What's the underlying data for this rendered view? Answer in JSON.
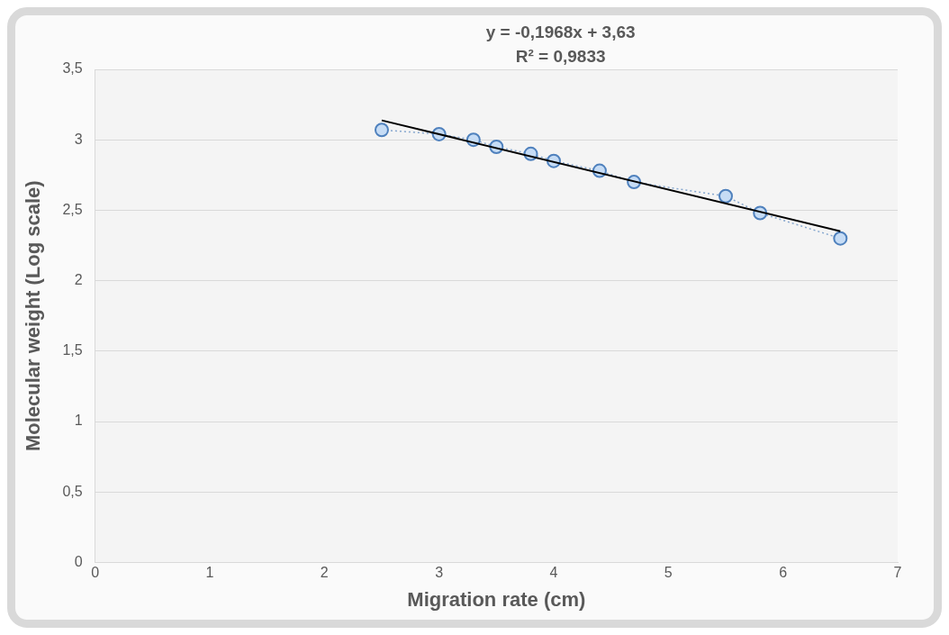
{
  "chart_data": {
    "type": "scatter",
    "xlabel": "Migration rate (cm)",
    "ylabel": "Molecular weight (Log scale)",
    "annotations": [
      "y = -0,1968x + 3,63",
      "R² = 0,9833"
    ],
    "xlim": [
      0,
      7
    ],
    "xticks": [
      0,
      1,
      2,
      3,
      4,
      5,
      6,
      7
    ],
    "ylim": [
      0,
      3.5
    ],
    "yticks": [
      {
        "value": 0,
        "label": "0"
      },
      {
        "value": 0.5,
        "label": "0,5"
      },
      {
        "value": 1,
        "label": "1"
      },
      {
        "value": 1.5,
        "label": "1,5"
      },
      {
        "value": 2,
        "label": "2"
      },
      {
        "value": 2.5,
        "label": "2,5"
      },
      {
        "value": 3,
        "label": "3"
      },
      {
        "value": 3.5,
        "label": "3,5"
      }
    ],
    "grid": "y",
    "legend": false,
    "series": [
      {
        "type": "line",
        "color": "#4f81bd",
        "marker": "circle",
        "line_style": "dotted",
        "x": [
          2.5,
          3.0,
          3.3,
          3.5,
          3.8,
          4.0,
          4.4,
          4.7,
          5.5,
          5.8,
          6.5
        ],
        "values": [
          3.07,
          3.04,
          3.0,
          2.95,
          2.9,
          2.85,
          2.78,
          2.7,
          2.6,
          2.48,
          2.3
        ]
      },
      {
        "type": "line",
        "color": "#000000",
        "marker": "none",
        "line_style": "solid",
        "x": [
          2.5,
          6.5
        ],
        "values": [
          3.138,
          2.351
        ]
      }
    ]
  }
}
